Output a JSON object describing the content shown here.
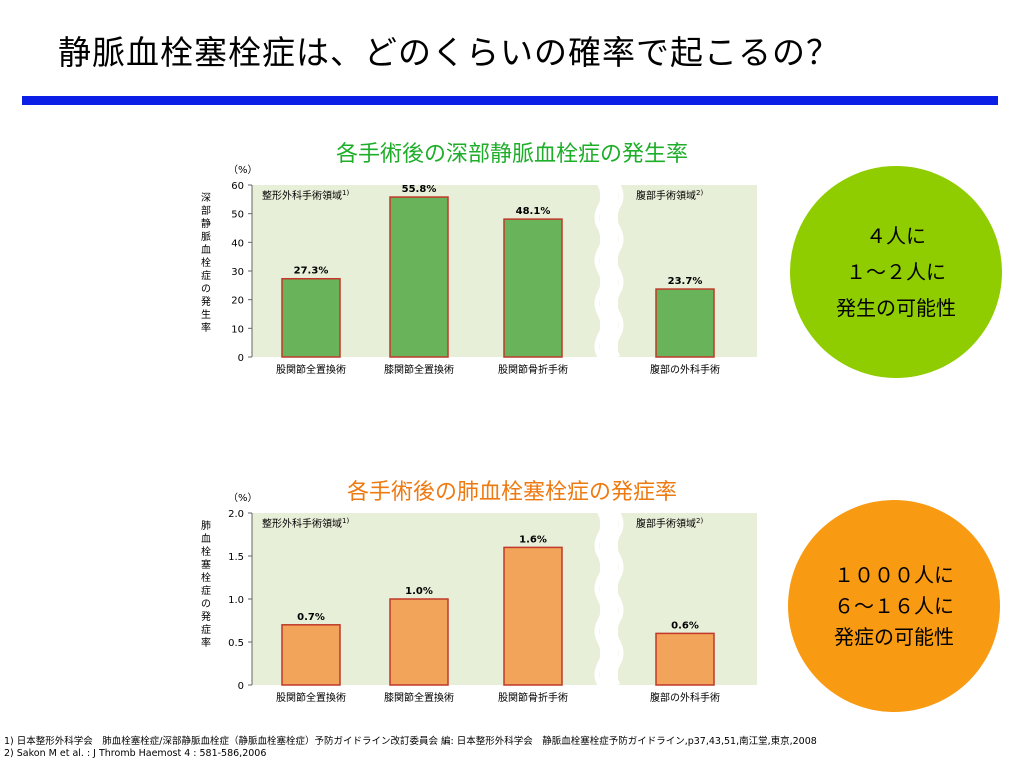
{
  "page": {
    "title": "静脈血栓塞栓症は、どのくらいの確率で起こるの？",
    "footnote1": "1) 日本整形外科学会　肺血栓塞栓症/深部静脈血栓症（静脈血栓塞栓症）予防ガイドライン改訂委員会 編: 日本整形外科学会　静脈血栓塞栓症予防ガイドライン,p37,43,51,南江堂,東京,2008",
    "footnote2": "2) Sakon M et al. : J Thromb Haemost 4 : 581-586,2006"
  },
  "colors": {
    "rule": "#0a1ee6",
    "title1": "#1fae2a",
    "title2": "#ee7a12",
    "bar1": "#69b35a",
    "bar2": "#f2a45a",
    "plot_bg": "#e8efd8",
    "bubble1": "#8fcc00",
    "bubble2": "#f89a12"
  },
  "bubbles": {
    "b1": [
      "４人に",
      "１～２人に",
      "発生の可能性"
    ],
    "b2": [
      "１０００人に",
      "６～１６人に",
      "発症の可能性"
    ]
  },
  "chart_data": [
    {
      "type": "bar",
      "title": "各手術後の深部静脈血栓症の発生率",
      "unit": "（%）",
      "ylabel": "深部静脈血栓症の発生率",
      "ylim": [
        0,
        60
      ],
      "yticks": [
        "0",
        "10",
        "20",
        "30",
        "40",
        "50",
        "60"
      ],
      "grid": false,
      "categories": [
        "股関節全置換術",
        "膝関節全置換術",
        "股関節骨折手術",
        "腹部の外科手術"
      ],
      "values": [
        27.3,
        55.8,
        48.1,
        23.7
      ],
      "value_labels": [
        "27.3%",
        "55.8%",
        "48.1%",
        "23.7%"
      ],
      "groups": [
        {
          "label": "整形外科手術領域",
          "ref": "1)"
        },
        {
          "label": "腹部手術領域",
          "ref": "2)"
        }
      ]
    },
    {
      "type": "bar",
      "title": "各手術後の肺血栓塞栓症の発症率",
      "unit": "（%）",
      "ylabel": "肺血栓塞栓症の発症率",
      "ylim": [
        0,
        2.0
      ],
      "yticks": [
        "0",
        "0.5",
        "1.0",
        "1.5",
        "2.0"
      ],
      "grid": false,
      "categories": [
        "股関節全置換術",
        "膝関節全置換術",
        "股関節骨折手術",
        "腹部の外科手術"
      ],
      "values": [
        0.7,
        1.0,
        1.6,
        0.6
      ],
      "value_labels": [
        "0.7%",
        "1.0%",
        "1.6%",
        "0.6%"
      ],
      "groups": [
        {
          "label": "整形外科手術領域",
          "ref": "1)"
        },
        {
          "label": "腹部手術領域",
          "ref": "2)"
        }
      ]
    }
  ]
}
